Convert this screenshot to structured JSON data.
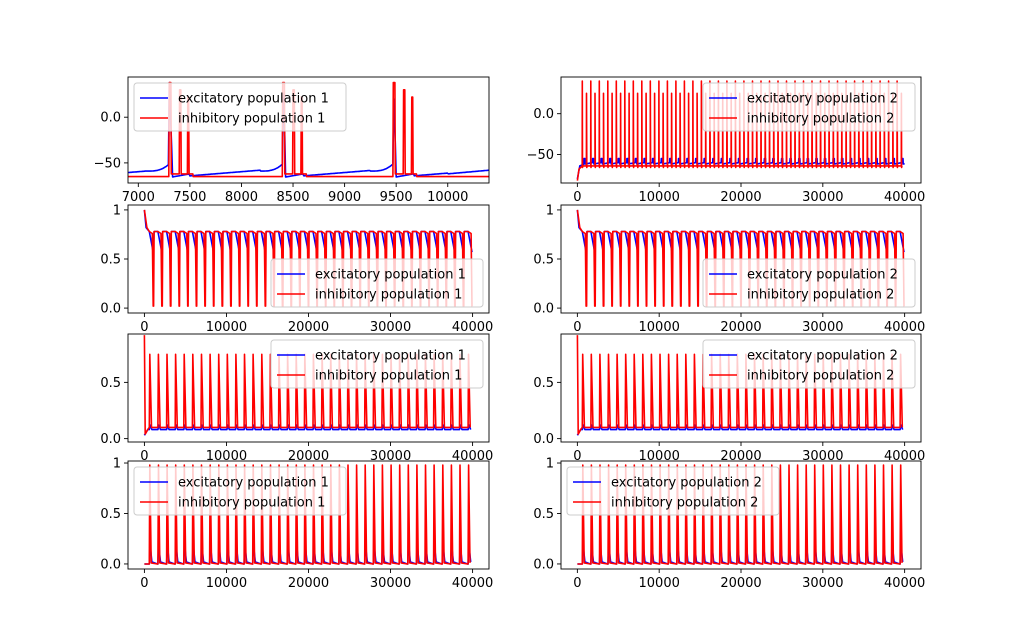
{
  "figure": {
    "background": "#ffffff"
  },
  "colors": {
    "excitatory": "#0000ff",
    "inhibitory": "#ff0000"
  },
  "chart_data": [
    {
      "id": "r1c1",
      "type": "line",
      "title": "",
      "xlabel": "",
      "ylabel": "",
      "xlim": [
        6900,
        10400
      ],
      "ylim": [
        -72,
        44
      ],
      "xticks": [
        7000,
        7500,
        8000,
        8500,
        9000,
        9500,
        10000
      ],
      "yticks": [
        0,
        -50
      ],
      "legend": {
        "placement": "upper-left",
        "entries": [
          "excitatory population 1",
          "inhibitory population 1"
        ]
      },
      "series": [
        {
          "name": "excitatory population 1",
          "color": "#0000ff",
          "kind": "membrane-slow",
          "spikes": [
            7300,
            8400,
            9470
          ],
          "baseline": -61,
          "range": [
            6900,
            10400
          ]
        },
        {
          "name": "inhibitory population 1",
          "color": "#ff0000",
          "kind": "membrane-burst",
          "spikes": [
            7300,
            8400,
            9470
          ],
          "baseline": -65,
          "range": [
            6900,
            10400
          ]
        }
      ]
    },
    {
      "id": "r1c2",
      "type": "line",
      "title": "",
      "xlabel": "",
      "ylabel": "",
      "xlim": [
        -2000,
        42000
      ],
      "ylim": [
        -85,
        45
      ],
      "xticks": [
        0,
        10000,
        20000,
        30000,
        40000
      ],
      "yticks": [
        0,
        -50
      ],
      "legend": {
        "placement": "upper-right",
        "entries": [
          "excitatory population 2",
          "inhibitory population 2"
        ]
      },
      "series": [
        {
          "name": "excitatory population 2",
          "color": "#0000ff",
          "kind": "membrane-osc",
          "period": 1050,
          "baseline": -60,
          "peak": -55,
          "range": [
            0,
            40000
          ]
        },
        {
          "name": "inhibitory population 2",
          "color": "#ff0000",
          "kind": "membrane-spikes",
          "period": 520,
          "baseline": -64,
          "peak_high": 40,
          "peak_low": 25,
          "range": [
            0,
            40000
          ]
        }
      ]
    },
    {
      "id": "r2c1",
      "type": "line",
      "title": "",
      "xlabel": "",
      "ylabel": "",
      "xlim": [
        -2000,
        42000
      ],
      "ylim": [
        -0.05,
        1.05
      ],
      "xticks": [
        0,
        10000,
        20000,
        30000,
        40000
      ],
      "yticks": [
        0.0,
        0.5,
        1.0
      ],
      "legend": {
        "placement": "lower-right",
        "entries": [
          "excitatory population 1",
          "inhibitory population 1"
        ]
      },
      "series": [
        {
          "name": "excitatory population 1",
          "color": "#0000ff",
          "kind": "gating-dip",
          "period": 1050,
          "start": 0,
          "high": 0.78,
          "low": 0.57,
          "range": [
            0,
            40000
          ]
        },
        {
          "name": "inhibitory population 1",
          "color": "#ff0000",
          "kind": "gating-deep",
          "period": 1050,
          "start": 0,
          "high": 0.78,
          "low": 0.02,
          "range": [
            0,
            40000
          ]
        }
      ]
    },
    {
      "id": "r2c2",
      "type": "line",
      "title": "",
      "xlabel": "",
      "ylabel": "",
      "xlim": [
        -2000,
        42000
      ],
      "ylim": [
        -0.05,
        1.05
      ],
      "xticks": [
        0,
        10000,
        20000,
        30000,
        40000
      ],
      "yticks": [
        0.0,
        0.5,
        1.0
      ],
      "legend": {
        "placement": "lower-right",
        "entries": [
          "excitatory population 2",
          "inhibitory population 2"
        ]
      },
      "series": [
        {
          "name": "excitatory population 2",
          "color": "#0000ff",
          "kind": "gating-dip",
          "period": 1050,
          "start": 0,
          "high": 0.78,
          "low": 0.57,
          "range": [
            0,
            40000
          ]
        },
        {
          "name": "inhibitory population 2",
          "color": "#ff0000",
          "kind": "gating-deep",
          "period": 1050,
          "start": 0,
          "high": 0.78,
          "low": 0.02,
          "range": [
            0,
            40000
          ]
        }
      ]
    },
    {
      "id": "r3c1",
      "type": "line",
      "title": "",
      "xlabel": "",
      "ylabel": "",
      "xlim": [
        -2000,
        42000
      ],
      "ylim": [
        -0.03,
        0.93
      ],
      "xticks": [
        0,
        10000,
        20000,
        30000,
        40000
      ],
      "yticks": [
        0.0,
        0.5
      ],
      "legend": {
        "placement": "upper-right",
        "entries": [
          "excitatory population 1",
          "inhibitory population 1"
        ]
      },
      "series": [
        {
          "name": "excitatory population 1",
          "color": "#0000ff",
          "kind": "spike-small",
          "period": 1050,
          "base": 0.08,
          "peak": 0.12,
          "range": [
            0,
            40000
          ]
        },
        {
          "name": "inhibitory population 1",
          "color": "#ff0000",
          "kind": "spike-tall",
          "period": 1050,
          "base": 0.1,
          "peak": 0.75,
          "initial": 0.92,
          "range": [
            0,
            40000
          ]
        }
      ]
    },
    {
      "id": "r3c2",
      "type": "line",
      "title": "",
      "xlabel": "",
      "ylabel": "",
      "xlim": [
        -2000,
        42000
      ],
      "ylim": [
        -0.03,
        0.93
      ],
      "xticks": [
        0,
        10000,
        20000,
        30000,
        40000
      ],
      "yticks": [
        0.0,
        0.5
      ],
      "legend": {
        "placement": "upper-right",
        "entries": [
          "excitatory population 2",
          "inhibitory population 2"
        ]
      },
      "series": [
        {
          "name": "excitatory population 2",
          "color": "#0000ff",
          "kind": "spike-small",
          "period": 1050,
          "base": 0.08,
          "peak": 0.12,
          "range": [
            0,
            40000
          ]
        },
        {
          "name": "inhibitory population 2",
          "color": "#ff0000",
          "kind": "spike-tall",
          "period": 1050,
          "base": 0.1,
          "peak": 0.75,
          "initial": 0.92,
          "range": [
            0,
            40000
          ]
        }
      ]
    },
    {
      "id": "r4c1",
      "type": "line",
      "title": "",
      "xlabel": "",
      "ylabel": "",
      "xlim": [
        -2000,
        42000
      ],
      "ylim": [
        -0.05,
        1.02
      ],
      "xticks": [
        0,
        10000,
        20000,
        30000,
        40000
      ],
      "yticks": [
        0.0,
        0.5,
        1.0
      ],
      "legend": {
        "placement": "upper-left",
        "entries": [
          "excitatory population 1",
          "inhibitory population 1"
        ]
      },
      "series": [
        {
          "name": "excitatory population 1",
          "color": "#0000ff",
          "kind": "pulse-small",
          "period": 1050,
          "base": 0.0,
          "peak": 0.2,
          "range": [
            0,
            40000
          ]
        },
        {
          "name": "inhibitory population 1",
          "color": "#ff0000",
          "kind": "pulse-tall",
          "period": 1050,
          "base": 0.0,
          "peak": 0.98,
          "range": [
            0,
            40000
          ]
        }
      ]
    },
    {
      "id": "r4c2",
      "type": "line",
      "title": "",
      "xlabel": "",
      "ylabel": "",
      "xlim": [
        -2000,
        42000
      ],
      "ylim": [
        -0.05,
        1.02
      ],
      "xticks": [
        0,
        10000,
        20000,
        30000,
        40000
      ],
      "yticks": [
        0.0,
        0.5,
        1.0
      ],
      "legend": {
        "placement": "upper-left",
        "entries": [
          "excitatory population 2",
          "inhibitory population 2"
        ]
      },
      "series": [
        {
          "name": "excitatory population 2",
          "color": "#0000ff",
          "kind": "pulse-small",
          "period": 1050,
          "base": 0.0,
          "peak": 0.2,
          "range": [
            0,
            40000
          ]
        },
        {
          "name": "inhibitory population 2",
          "color": "#ff0000",
          "kind": "pulse-tall",
          "period": 1050,
          "base": 0.0,
          "peak": 0.98,
          "range": [
            0,
            40000
          ]
        }
      ]
    }
  ]
}
